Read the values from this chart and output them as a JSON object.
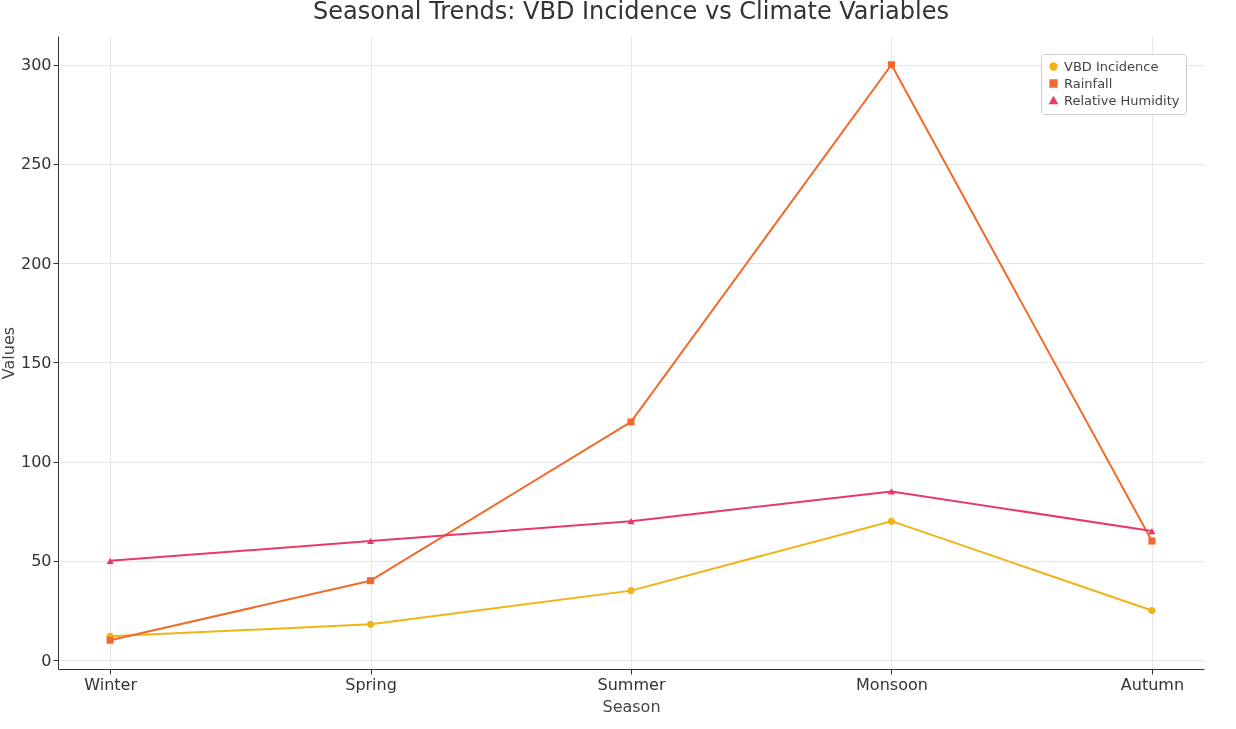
{
  "chart_data": {
    "type": "line",
    "title": "Seasonal Trends: VBD Incidence vs Climate Variables",
    "xlabel": "Season",
    "ylabel": "Values",
    "categories": [
      "Winter",
      "Spring",
      "Summer",
      "Monsoon",
      "Autumn"
    ],
    "series": [
      {
        "name": "VBD Incidence",
        "color": "#f2b319",
        "marker": "circle",
        "values": [
          12,
          18,
          35,
          70,
          25
        ]
      },
      {
        "name": "Rainfall",
        "color": "#f26a2b",
        "marker": "square",
        "values": [
          10,
          40,
          120,
          300,
          60
        ]
      },
      {
        "name": "Relative Humidity",
        "color": "#e8396a",
        "marker": "triangle",
        "values": [
          50,
          60,
          70,
          85,
          65
        ]
      }
    ],
    "ylim": [
      -4.5,
      314.5
    ],
    "yticks": [
      0,
      50,
      100,
      150,
      200,
      250,
      300
    ],
    "grid": true,
    "legend": "top right",
    "line_style": "solid"
  }
}
